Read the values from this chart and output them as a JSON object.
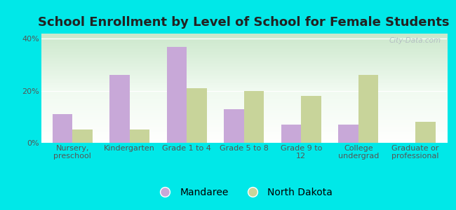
{
  "title": "School Enrollment by Level of School for Female Students",
  "categories": [
    "Nursery,\npreschool",
    "Kindergarten",
    "Grade 1 to 4",
    "Grade 5 to 8",
    "Grade 9 to\n12",
    "College\nundergrad",
    "Graduate or\nprofessional"
  ],
  "mandaree": [
    11,
    26,
    37,
    13,
    7,
    7,
    0
  ],
  "north_dakota": [
    5,
    5,
    21,
    20,
    18,
    26,
    8
  ],
  "mandaree_color": "#c8a8d8",
  "north_dakota_color": "#c8d49a",
  "background_color": "#00e8e8",
  "ylim": [
    0,
    42
  ],
  "yticks": [
    0,
    20,
    40
  ],
  "ytick_labels": [
    "0%",
    "20%",
    "40%"
  ],
  "bar_width": 0.35,
  "title_fontsize": 13,
  "tick_fontsize": 8,
  "legend_fontsize": 10,
  "watermark": "City-Data.com"
}
